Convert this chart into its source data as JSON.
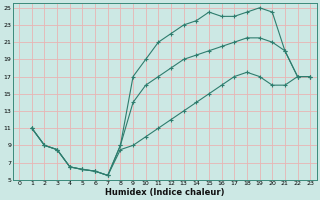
{
  "title": "",
  "xlabel": "Humidex (Indice chaleur)",
  "ylabel": "",
  "bg_color": "#cce8e4",
  "grid_color": "#e8b4b4",
  "line_color": "#2e7d6e",
  "series1_x": [
    1,
    2,
    3,
    4,
    5,
    6,
    7,
    8,
    9,
    10,
    11,
    12,
    13,
    14,
    15,
    16,
    17,
    18,
    19,
    20,
    21,
    22,
    23
  ],
  "series1_y": [
    11,
    9,
    8.5,
    6.5,
    6.2,
    6.0,
    5.5,
    9.0,
    14,
    16,
    17,
    18,
    19,
    19.5,
    20,
    20.5,
    21,
    21.5,
    21.5,
    21,
    20,
    17,
    17
  ],
  "series2_x": [
    1,
    2,
    3,
    4,
    5,
    6,
    7,
    8,
    9,
    10,
    11,
    12,
    13,
    14,
    15,
    16,
    17,
    18,
    19,
    20,
    21,
    22,
    23
  ],
  "series2_y": [
    11,
    9,
    8.5,
    6.5,
    6.2,
    6.0,
    5.5,
    9.0,
    17,
    19,
    21,
    22,
    23,
    23.5,
    24.5,
    24,
    24,
    24.5,
    25,
    24.5,
    20,
    17,
    17
  ],
  "series3_x": [
    1,
    2,
    3,
    4,
    5,
    6,
    7,
    8,
    9,
    10,
    11,
    12,
    13,
    14,
    15,
    16,
    17,
    18,
    19,
    20,
    21,
    22,
    23
  ],
  "series3_y": [
    11,
    9,
    8.5,
    6.5,
    6.2,
    6.0,
    5.5,
    8.5,
    9,
    10,
    11,
    12,
    13,
    14,
    15,
    16,
    17,
    17.5,
    17,
    16,
    16,
    17,
    17
  ],
  "xlim": [
    -0.5,
    23.5
  ],
  "ylim": [
    5,
    25.5
  ],
  "xticks": [
    0,
    1,
    2,
    3,
    4,
    5,
    6,
    7,
    8,
    9,
    10,
    11,
    12,
    13,
    14,
    15,
    16,
    17,
    18,
    19,
    20,
    21,
    22,
    23
  ],
  "yticks": [
    5,
    7,
    9,
    11,
    13,
    15,
    17,
    19,
    21,
    23,
    25
  ]
}
